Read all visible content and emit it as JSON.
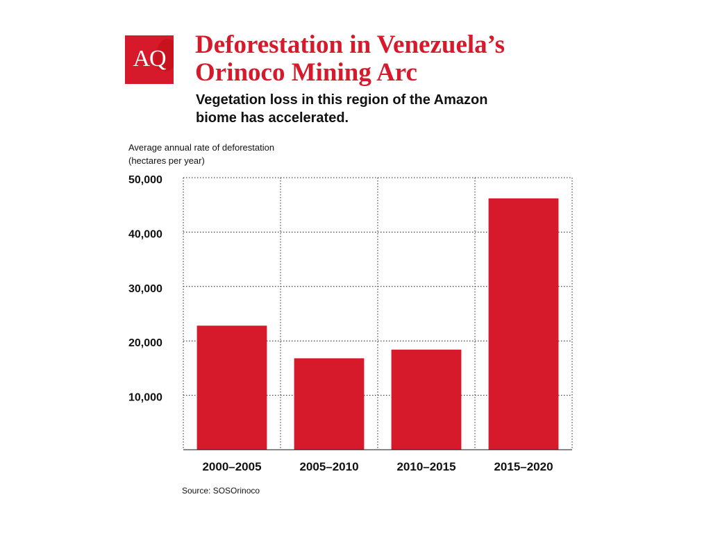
{
  "brand": {
    "logo_text": "AQ",
    "accent_color": "#d71a2b"
  },
  "header": {
    "title": "Deforestation in Venezuela’s\nOrinoco Mining Arc",
    "subtitle": "Vegetation loss in this region of the Amazon\nbiome has accelerated."
  },
  "footer": {
    "source": "Source: SOSOrinoco"
  },
  "chart_data": {
    "type": "bar",
    "title": "Deforestation in Venezuela’s Orinoco Mining Arc",
    "subtitle": "Vegetation loss in this region of the Amazon biome has accelerated.",
    "ylabel": "Average annual rate of deforestation\n(hectares per year)",
    "xlabel": "",
    "categories": [
      "2000–2005",
      "2005–2010",
      "2010–2015",
      "2015–2020"
    ],
    "values": [
      22800,
      16800,
      18400,
      46200
    ],
    "ylim": [
      0,
      50000
    ],
    "yticks": [
      10000,
      20000,
      30000,
      40000,
      50000
    ],
    "ytick_labels": [
      "10,000",
      "20,000",
      "30,000",
      "40,000",
      "50,000"
    ],
    "grid": "dotted, both axes",
    "bar_color": "#d71a2b",
    "source": "Source: SOSOrinoco"
  }
}
